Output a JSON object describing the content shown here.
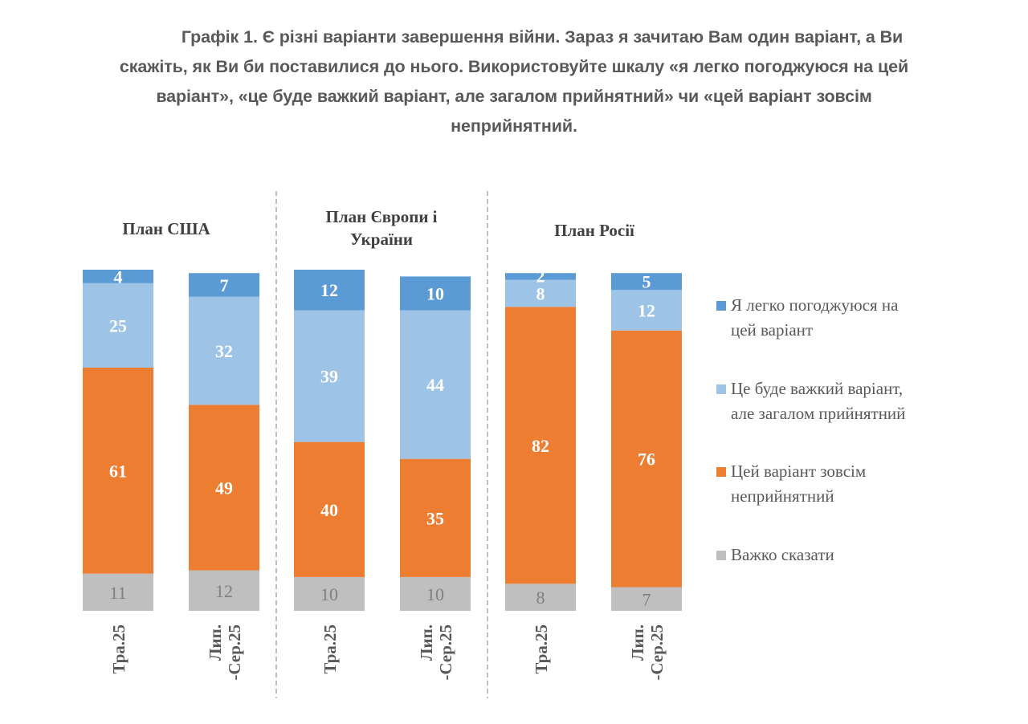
{
  "title": {
    "line1": "Графік 1. Є різні варіанти завершення війни. Зараз я зачитаю Вам один варіант, а Ви",
    "line2": "скажіть, як Ви би поставилися до нього. Використовуйте шкалу «я легко погоджуюся на цей",
    "line3": "варіант», «це буде важкий варіант, але загалом прийнятний» чи «цей варіант зовсім",
    "line4": "неприйнятний."
  },
  "chart_data": {
    "type": "bar",
    "stacked": true,
    "title": "Графік 1. Є різні варіанти завершення війни. Зараз я зачитаю Вам один варіант, а Ви скажіть, як Ви би поставилися до нього. Використовуйте шкалу «я легко погоджуюся на цей варіант», «це буде важкий варіант, але загалом прийнятний» чи «цей варіант зовсім неприйнятний.",
    "groups": [
      {
        "label": "План США",
        "categories": [
          "Тра.25",
          "Лип. -Сер.25"
        ]
      },
      {
        "label": "План Європи і України",
        "label_lines": [
          "План Європи і",
          "України"
        ],
        "categories": [
          "Тра.25",
          "Лип. -Сер.25"
        ]
      },
      {
        "label": "План Росії",
        "categories": [
          "Тра.25",
          "Лип. -Сер.25"
        ]
      }
    ],
    "categories": [
      "Тра.25",
      "Лип. -Сер.25",
      "Тра.25",
      "Лип. -Сер.25",
      "Тра.25",
      "Лип. -Сер.25"
    ],
    "category_lines": [
      [
        "Тра.25"
      ],
      [
        "Лип.",
        "-Сер.25"
      ],
      [
        "Тра.25"
      ],
      [
        "Лип.",
        "-Сер.25"
      ],
      [
        "Тра.25"
      ],
      [
        "Лип.",
        "-Сер.25"
      ]
    ],
    "series": [
      {
        "name": "Важко сказати",
        "color": "#bfbfbf",
        "label_color": "#7f7f7f",
        "values": [
          11,
          12,
          10,
          10,
          8,
          7
        ]
      },
      {
        "name": "Цей варіант зовсім неприйнятний",
        "legend_lines": [
          "Цей варіант зовсім",
          "неприйнятний"
        ],
        "color": "#ed7d31",
        "label_color": "#ffffff",
        "values": [
          61,
          49,
          40,
          35,
          82,
          76
        ]
      },
      {
        "name": "Це буде важкий варіант, але загалом прийнятний",
        "legend_lines": [
          "Це буде важкий варіант,",
          "але загалом прийнятний"
        ],
        "color": "#9dc3e6",
        "label_color": "#ffffff",
        "values": [
          25,
          32,
          39,
          44,
          8,
          12
        ]
      },
      {
        "name": "Я легко погоджуюся на цей варіант",
        "legend_lines": [
          "Я легко погоджуюся на",
          "цей варіант"
        ],
        "color": "#5b9bd5",
        "label_color": "#ffffff",
        "values": [
          4,
          7,
          12,
          10,
          2,
          5
        ]
      }
    ],
    "legend_order": [
      3,
      2,
      1,
      0
    ],
    "legend_position": "right",
    "ylim": [
      0,
      101
    ],
    "grid": false,
    "xlabel": "",
    "ylabel": ""
  }
}
